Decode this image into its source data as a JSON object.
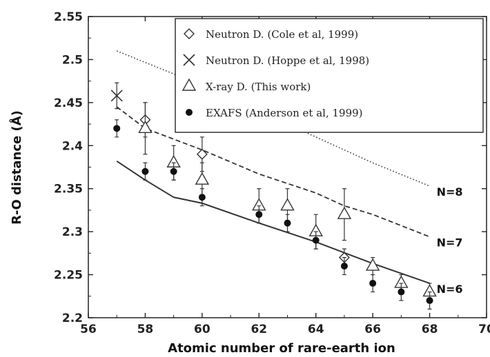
{
  "chart_data": {
    "type": "scatter",
    "xlabel": "Atomic number of rare-earth ion",
    "ylabel": "R-O distance (Å)",
    "xlim": [
      56,
      70
    ],
    "ylim": [
      2.2,
      2.55
    ],
    "xticks": [
      "56",
      "58",
      "60",
      "62",
      "64",
      "66",
      "68",
      "70"
    ],
    "yticks": [
      "2.2",
      "2.25",
      "2.3",
      "2.35",
      "2.4",
      "2.45",
      "2.5",
      "2.55"
    ],
    "legend_position": "top-right",
    "series": [
      {
        "name": "Neutron D. (Cole et al, 1999)",
        "marker": "diamond",
        "points": [
          {
            "x": 58,
            "y": 2.43,
            "err": 0.02
          },
          {
            "x": 60,
            "y": 2.39,
            "err": 0.02
          },
          {
            "x": 65,
            "y": 2.27,
            "err": 0.01
          }
        ]
      },
      {
        "name": "Neutron D. (Hoppe et al, 1998)",
        "marker": "x",
        "points": [
          {
            "x": 57,
            "y": 2.458,
            "err": 0.015
          }
        ]
      },
      {
        "name": "X-ray D. (This work)",
        "marker": "triangle",
        "points": [
          {
            "x": 58,
            "y": 2.42,
            "err": 0.03
          },
          {
            "x": 59,
            "y": 2.38,
            "err": 0.02
          },
          {
            "x": 60,
            "y": 2.36,
            "err": 0.02
          },
          {
            "x": 62,
            "y": 2.33,
            "err": 0.02
          },
          {
            "x": 63,
            "y": 2.33,
            "err": 0.02
          },
          {
            "x": 64,
            "y": 2.3,
            "err": 0.02
          },
          {
            "x": 65,
            "y": 2.32,
            "err": 0.03
          },
          {
            "x": 66,
            "y": 2.26,
            "err": 0.01
          },
          {
            "x": 67,
            "y": 2.24,
            "err": 0.01
          },
          {
            "x": 68,
            "y": 2.23,
            "err": 0.01
          }
        ]
      },
      {
        "name": "EXAFS (Anderson et al, 1999)",
        "marker": "filled-circle",
        "points": [
          {
            "x": 57,
            "y": 2.42,
            "err": 0.01
          },
          {
            "x": 58,
            "y": 2.37,
            "err": 0.01
          },
          {
            "x": 59,
            "y": 2.37,
            "err": 0.01
          },
          {
            "x": 60,
            "y": 2.34,
            "err": 0.01
          },
          {
            "x": 62,
            "y": 2.32,
            "err": 0.01
          },
          {
            "x": 63,
            "y": 2.31,
            "err": 0.01
          },
          {
            "x": 64,
            "y": 2.29,
            "err": 0.01
          },
          {
            "x": 65,
            "y": 2.26,
            "err": 0.01
          },
          {
            "x": 66,
            "y": 2.24,
            "err": 0.01
          },
          {
            "x": 67,
            "y": 2.23,
            "err": 0.01
          },
          {
            "x": 68,
            "y": 2.22,
            "err": 0.01
          }
        ]
      }
    ],
    "curves": [
      {
        "label": "N=8",
        "style": "dotted",
        "points": [
          [
            57,
            2.51
          ],
          [
            60,
            2.47
          ],
          [
            62,
            2.44
          ],
          [
            64,
            2.41
          ],
          [
            66,
            2.38
          ],
          [
            68,
            2.353
          ]
        ]
      },
      {
        "label": "N=7",
        "style": "dashed",
        "points": [
          [
            57,
            2.445
          ],
          [
            58,
            2.42
          ],
          [
            60,
            2.395
          ],
          [
            62,
            2.367
          ],
          [
            64,
            2.345
          ],
          [
            65,
            2.33
          ],
          [
            66,
            2.32
          ],
          [
            68,
            2.294
          ]
        ]
      },
      {
        "label": "N=6",
        "style": "solid",
        "points": [
          [
            57,
            2.382
          ],
          [
            58,
            2.36
          ],
          [
            59,
            2.34
          ],
          [
            60,
            2.333
          ],
          [
            62,
            2.31
          ],
          [
            64,
            2.288
          ],
          [
            66,
            2.263
          ],
          [
            68,
            2.24
          ]
        ]
      }
    ]
  }
}
